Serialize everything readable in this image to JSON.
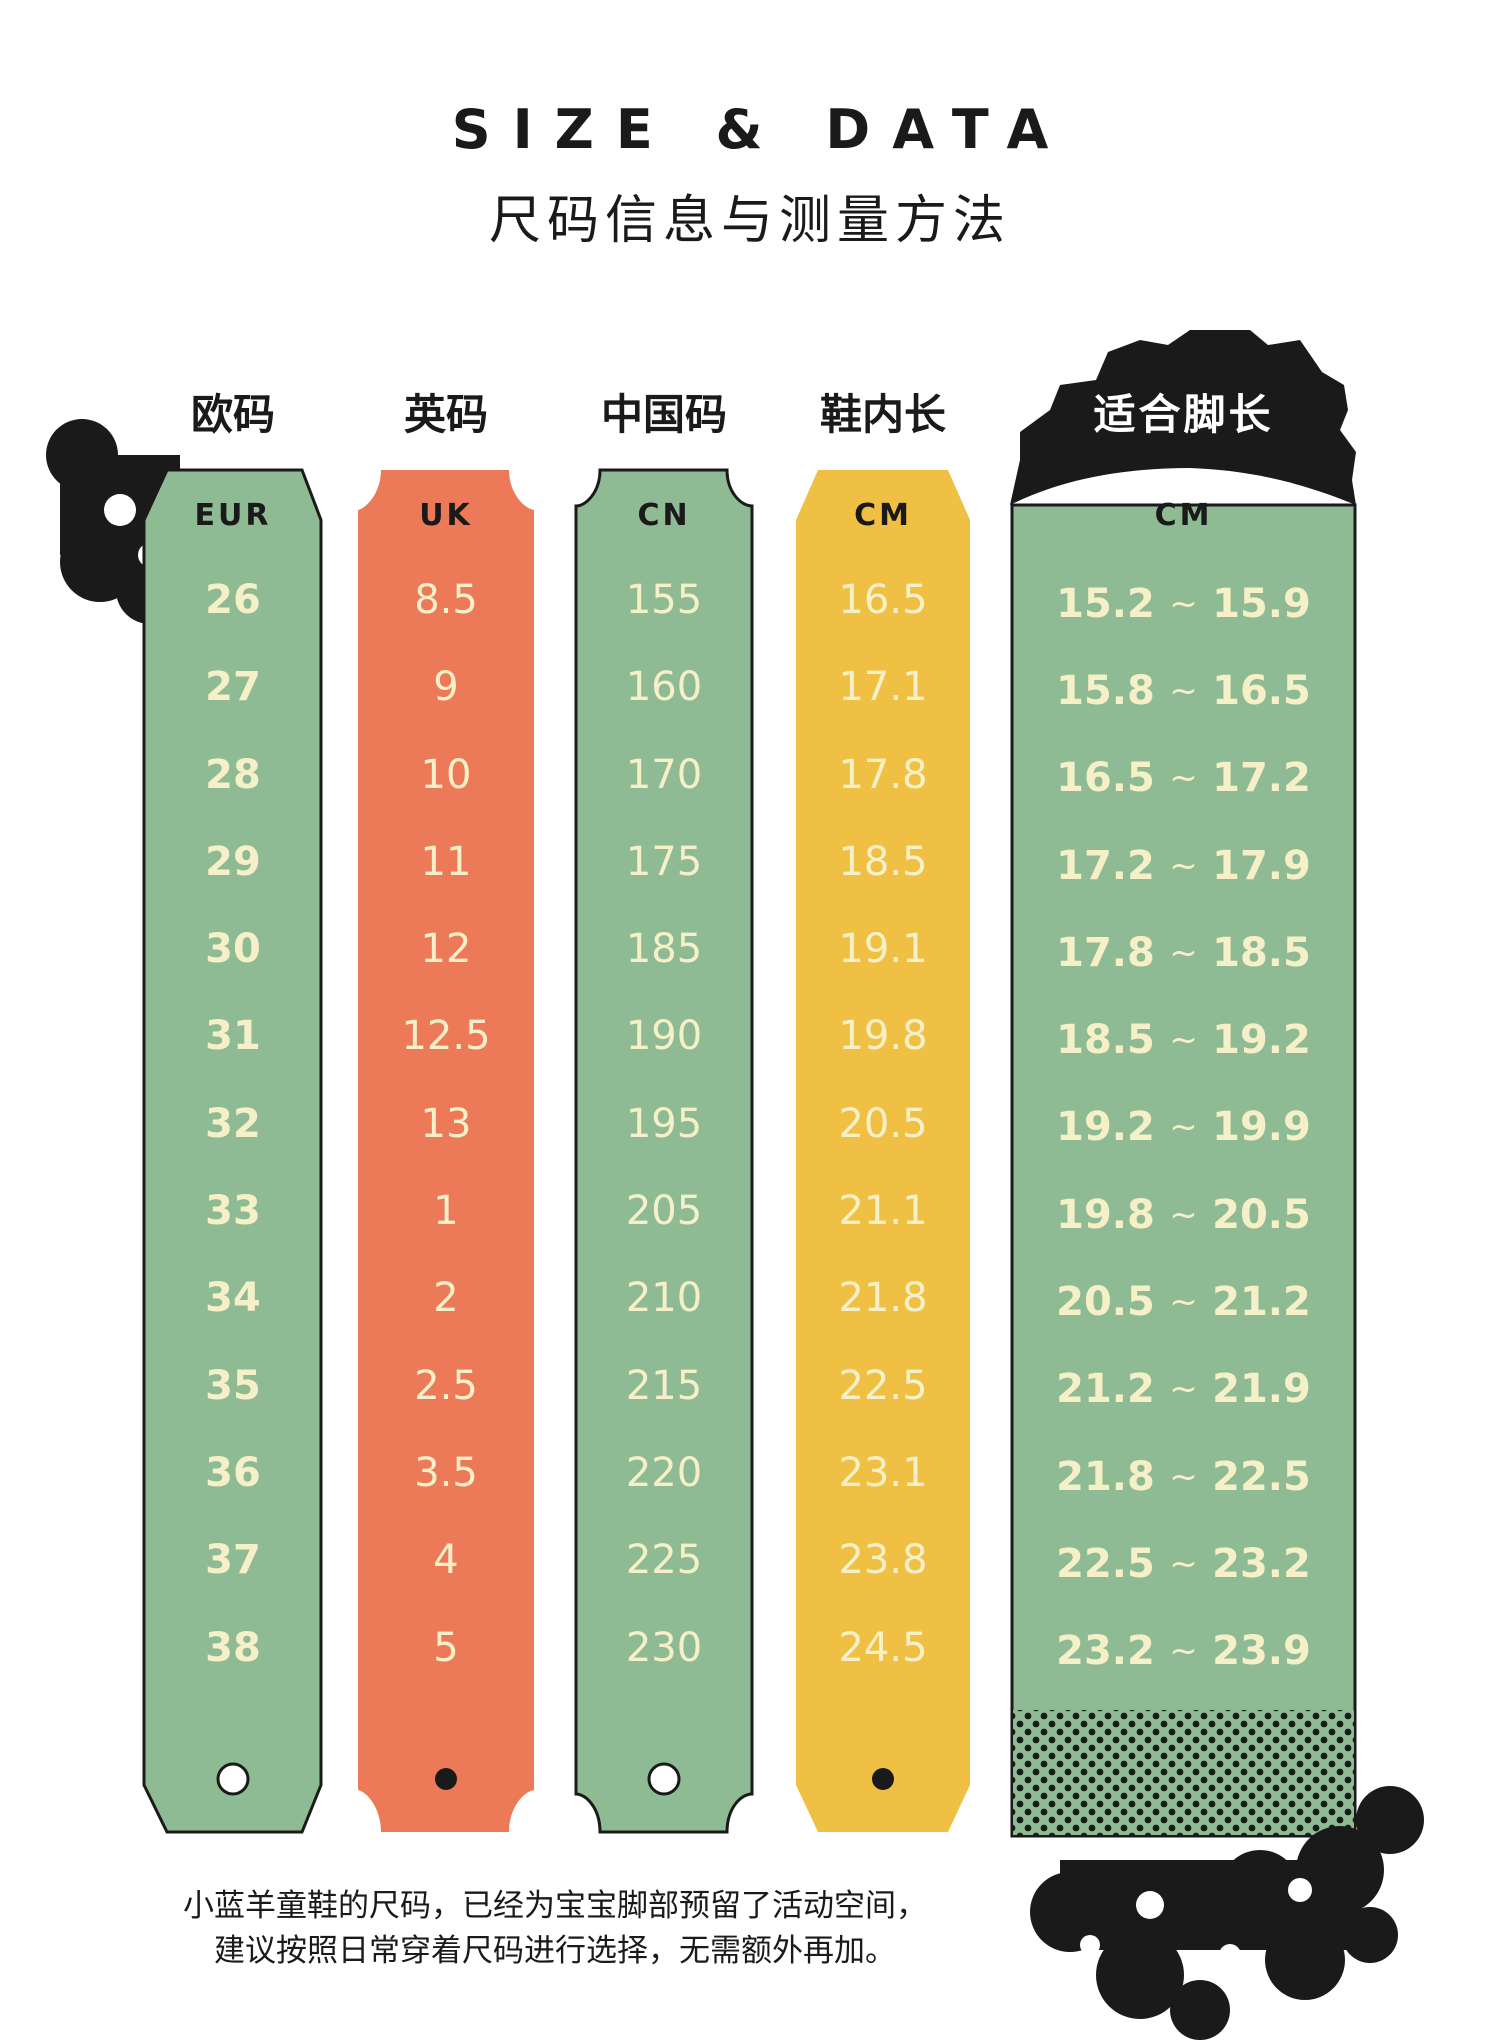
{
  "title": {
    "en": "SIZE & DATA",
    "cn": "尺码信息与测量方法"
  },
  "colors": {
    "green": "#8fbb94",
    "orange": "#ec7a58",
    "yellow": "#f0c044",
    "dark": "#1a1a1a",
    "cream": "#f6f0c8"
  },
  "columns": [
    {
      "header": "欧码",
      "unit": "EUR",
      "values": [
        "26",
        "27",
        "28",
        "29",
        "30",
        "31",
        "32",
        "33",
        "34",
        "35",
        "36",
        "37",
        "38"
      ]
    },
    {
      "header": "英码",
      "unit": "UK",
      "values": [
        "8.5",
        "9",
        "10",
        "11",
        "12",
        "12.5",
        "13",
        "1",
        "2",
        "2.5",
        "3.5",
        "4",
        "5"
      ]
    },
    {
      "header": "中国码",
      "unit": "CN",
      "values": [
        "155",
        "160",
        "170",
        "175",
        "185",
        "190",
        "195",
        "205",
        "210",
        "215",
        "220",
        "225",
        "230"
      ]
    },
    {
      "header": "鞋内长",
      "unit": "CM",
      "values": [
        "16.5",
        "17.1",
        "17.8",
        "18.5",
        "19.1",
        "19.8",
        "20.5",
        "21.1",
        "21.8",
        "22.5",
        "23.1",
        "23.8",
        "24.5"
      ]
    }
  ],
  "fit": {
    "header": "适合脚长",
    "unit": "CM",
    "ranges": [
      [
        "15.2",
        "15.9"
      ],
      [
        "15.8",
        "16.5"
      ],
      [
        "16.5",
        "17.2"
      ],
      [
        "17.2",
        "17.9"
      ],
      [
        "17.8",
        "18.5"
      ],
      [
        "18.5",
        "19.2"
      ],
      [
        "19.2",
        "19.9"
      ],
      [
        "19.8",
        "20.5"
      ],
      [
        "20.5",
        "21.2"
      ],
      [
        "21.2",
        "21.9"
      ],
      [
        "21.8",
        "22.5"
      ],
      [
        "22.5",
        "23.2"
      ],
      [
        "23.2",
        "23.9"
      ]
    ],
    "separator": "~"
  },
  "note": {
    "line1": "小蓝羊童鞋的尺码，已经为宝宝脚部预留了活动空间，",
    "line2": "建议按照日常穿着尺码进行选择，无需额外再加。"
  },
  "icons": [
    "hole-icon",
    "dot-icon",
    "splat-decoration"
  ]
}
